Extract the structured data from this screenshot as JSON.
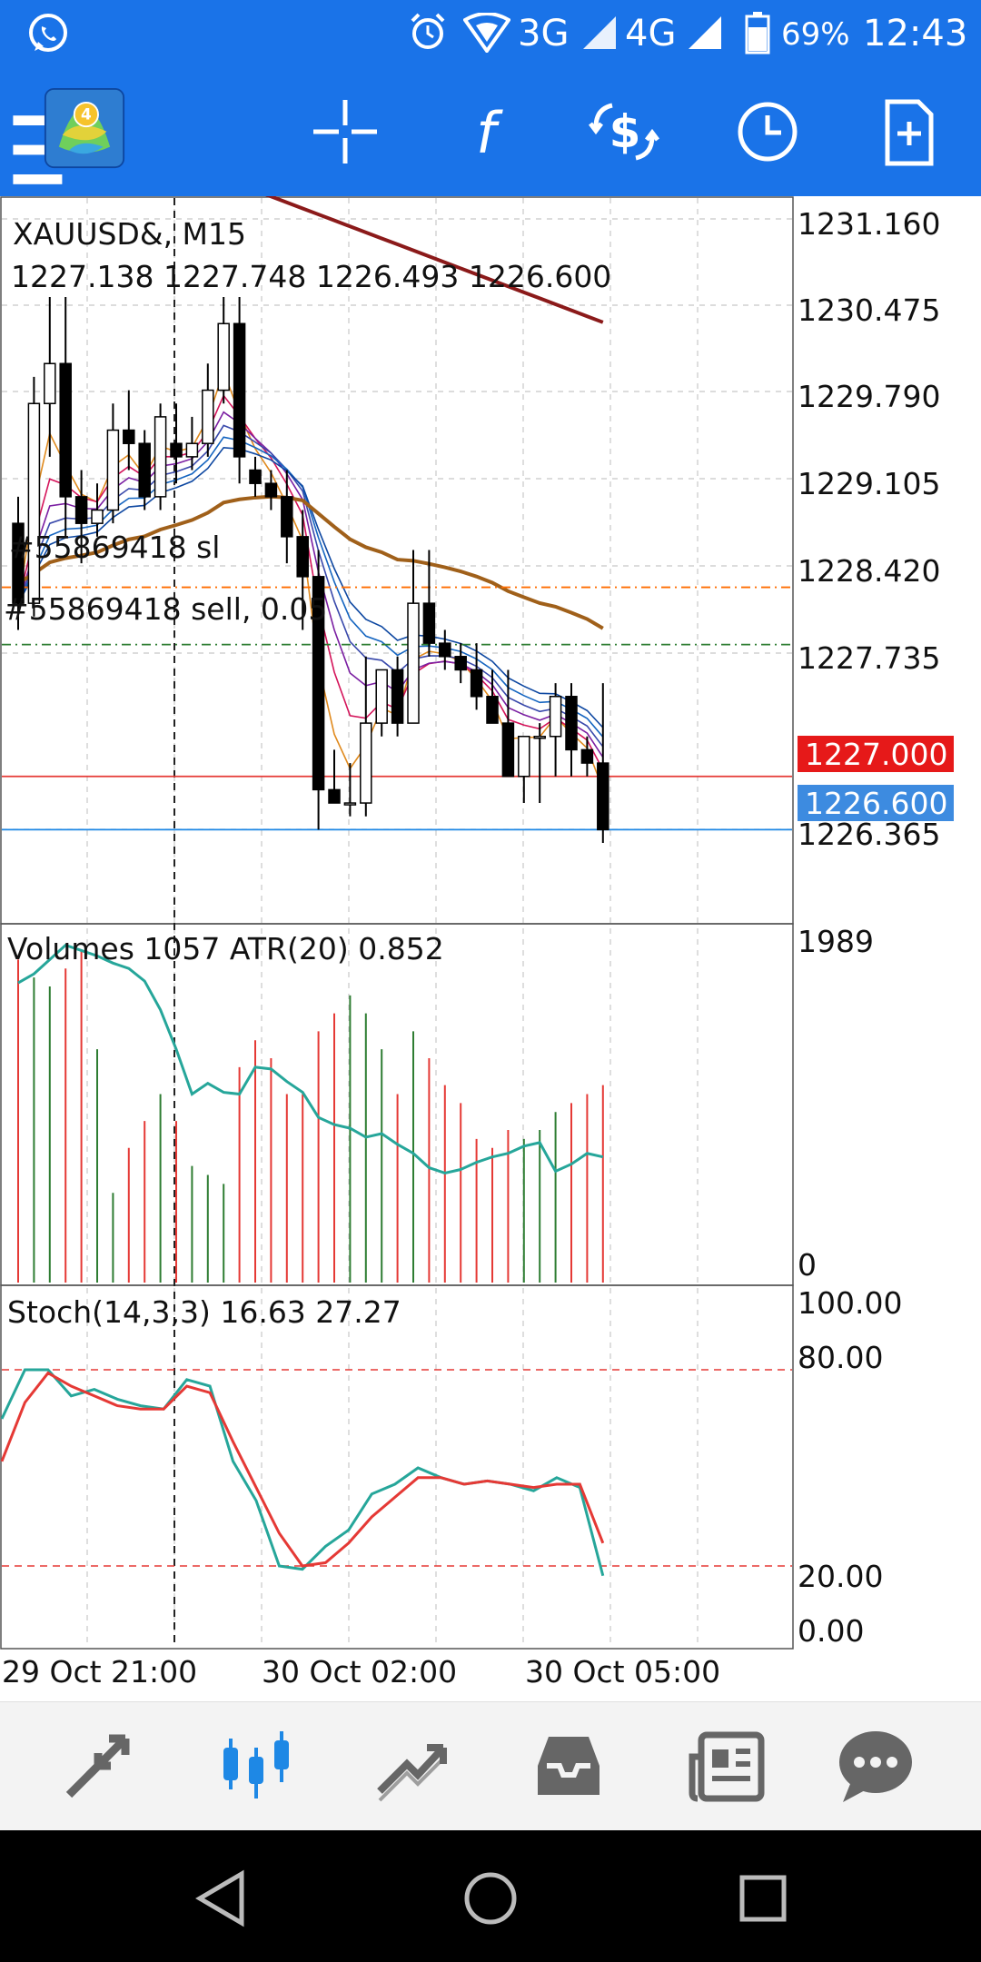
{
  "status_bar": {
    "network_3g": "3G",
    "network_4g": "4G",
    "battery": "69%",
    "time": "12:43"
  },
  "toolbar": {
    "icons": [
      "menu-icon",
      "metatrader-logo",
      "crosshair-icon",
      "function-icon",
      "trade-icon",
      "clock-icon",
      "new-document-icon"
    ]
  },
  "chart": {
    "symbol_line": "XAUUSD&, M15",
    "ohlc_line": "1227.138 1227.748 1226.493 1226.600",
    "sl_label": "#55869418 sl",
    "order_label": "#55869418 sell, 0.05",
    "price_ticks": [
      "1231.160",
      "1230.475",
      "1229.790",
      "1229.105",
      "1228.420",
      "1227.735",
      "1226.365"
    ],
    "bid_label": "1227.000",
    "ask_label": "1226.600",
    "volume_label": "Volumes 1057 ATR(20) 0.852",
    "volume_ticks": [
      "1989",
      "0"
    ],
    "stoch_label": "Stoch(14,3,3) 16.63 27.27",
    "stoch_ticks": [
      "100.00",
      "80.00",
      "20.00",
      "0.00"
    ],
    "time_labels": [
      "29 Oct 21:00",
      "30 Oct 02:00",
      "30 Oct 05:00"
    ],
    "colors": {
      "bid_line": "#e53935",
      "ask_line": "#1e88e5",
      "sl_line": "#ff6d00",
      "order_line": "#2e7d32",
      "ma_long": "#8b1a1a",
      "ma_mid": "#a0601a",
      "atr": "#26a69a",
      "stoch_main": "#26a69a",
      "stoch_signal": "#e53935"
    }
  },
  "chart_data": [
    {
      "type": "candlestick",
      "title": "XAUUSD&, M15",
      "ylim": [
        1225.9,
        1231.35
      ],
      "candles": [
        [
          1228.9,
          1229.1,
          1228.1,
          1228.3
        ],
        [
          1228.3,
          1230.0,
          1228.2,
          1229.8
        ],
        [
          1229.8,
          1230.6,
          1229.4,
          1230.1
        ],
        [
          1230.1,
          1230.6,
          1228.8,
          1229.1
        ],
        [
          1229.1,
          1229.3,
          1228.6,
          1228.9
        ],
        [
          1228.9,
          1229.2,
          1228.8,
          1229.0
        ],
        [
          1229.0,
          1229.8,
          1228.9,
          1229.6
        ],
        [
          1229.6,
          1229.9,
          1229.3,
          1229.5
        ],
        [
          1229.5,
          1229.6,
          1229.0,
          1229.1
        ],
        [
          1229.1,
          1229.8,
          1229.0,
          1229.7
        ],
        [
          1229.5,
          1229.8,
          1229.2,
          1229.4
        ],
        [
          1229.4,
          1229.7,
          1229.3,
          1229.5
        ],
        [
          1229.5,
          1230.1,
          1229.4,
          1229.9
        ],
        [
          1229.9,
          1230.6,
          1229.8,
          1230.4
        ],
        [
          1230.4,
          1230.6,
          1229.2,
          1229.4
        ],
        [
          1229.3,
          1229.4,
          1229.1,
          1229.2
        ],
        [
          1229.2,
          1229.3,
          1229.0,
          1229.1
        ],
        [
          1229.1,
          1229.3,
          1228.6,
          1228.8
        ],
        [
          1228.8,
          1229.0,
          1228.1,
          1228.5
        ],
        [
          1228.5,
          1228.7,
          1226.6,
          1226.9
        ],
        [
          1226.9,
          1227.2,
          1226.8,
          1226.8
        ],
        [
          1226.8,
          1227.1,
          1226.7,
          1226.8
        ],
        [
          1226.8,
          1227.9,
          1226.7,
          1227.4
        ],
        [
          1227.4,
          1227.8,
          1227.3,
          1227.8
        ],
        [
          1227.8,
          1227.9,
          1227.3,
          1227.4
        ],
        [
          1227.4,
          1228.7,
          1227.4,
          1228.3
        ],
        [
          1228.3,
          1228.7,
          1227.9,
          1228.0
        ],
        [
          1228.0,
          1228.1,
          1227.8,
          1227.9
        ],
        [
          1227.9,
          1228.0,
          1227.7,
          1227.8
        ],
        [
          1227.8,
          1228.0,
          1227.5,
          1227.6
        ],
        [
          1227.6,
          1227.8,
          1227.4,
          1227.4
        ],
        [
          1227.4,
          1227.8,
          1227.0,
          1227.0
        ],
        [
          1227.0,
          1227.3,
          1226.8,
          1227.3
        ],
        [
          1227.3,
          1227.4,
          1226.8,
          1227.3
        ],
        [
          1227.3,
          1227.7,
          1227.0,
          1227.6
        ],
        [
          1227.6,
          1227.7,
          1227.0,
          1227.2
        ],
        [
          1227.2,
          1227.3,
          1227.0,
          1227.1
        ],
        [
          1227.1,
          1227.7,
          1226.5,
          1226.6
        ]
      ],
      "bid": 1227.0,
      "ask": 1226.6,
      "stop_loss_level": 1228.42,
      "order_level": 1227.99
    },
    {
      "type": "bar",
      "title": "Volumes 1057 ATR(20) 0.852",
      "ylim": [
        0,
        1989
      ],
      "volumes": [
        1800,
        1700,
        1650,
        1750,
        1850,
        1300,
        500,
        750,
        900,
        1050,
        900,
        650,
        600,
        550,
        1200,
        1350,
        1250,
        1050,
        1050,
        1400,
        1500,
        1600,
        1500,
        1300,
        1050,
        1400,
        1250,
        1100,
        1000,
        800,
        750,
        850,
        800,
        850,
        950,
        1000,
        1050,
        1100
      ],
      "atr": [
        1670,
        1720,
        1800,
        1880,
        1850,
        1820,
        1780,
        1750,
        1680,
        1520,
        1300,
        1050,
        1110,
        1060,
        1050,
        1200,
        1190,
        1120,
        1060,
        920,
        880,
        860,
        810,
        830,
        770,
        720,
        640,
        610,
        630,
        670,
        700,
        720,
        760,
        780,
        620,
        660,
        720,
        700
      ]
    },
    {
      "type": "line",
      "title": "Stoch(14,3,3) 16.63 27.27",
      "ylim": [
        0,
        100
      ],
      "series": [
        {
          "name": "main",
          "values": [
            65,
            80,
            80,
            72,
            74,
            71,
            69,
            68,
            77,
            75,
            52,
            40,
            20,
            19,
            26,
            31,
            42,
            45,
            50,
            47,
            45,
            46,
            45,
            43,
            47,
            44,
            17
          ]
        },
        {
          "name": "signal",
          "values": [
            52,
            70,
            79,
            75,
            72,
            69,
            68,
            68,
            75,
            73,
            58,
            44,
            30,
            20,
            21,
            27,
            35,
            41,
            47,
            47,
            45,
            46,
            45,
            44,
            45,
            45,
            27
          ]
        }
      ]
    }
  ],
  "bottom_nav": {
    "items": [
      "quotes-icon",
      "chart-icon",
      "trade-icon",
      "history-icon",
      "news-icon",
      "chat-icon"
    ]
  }
}
